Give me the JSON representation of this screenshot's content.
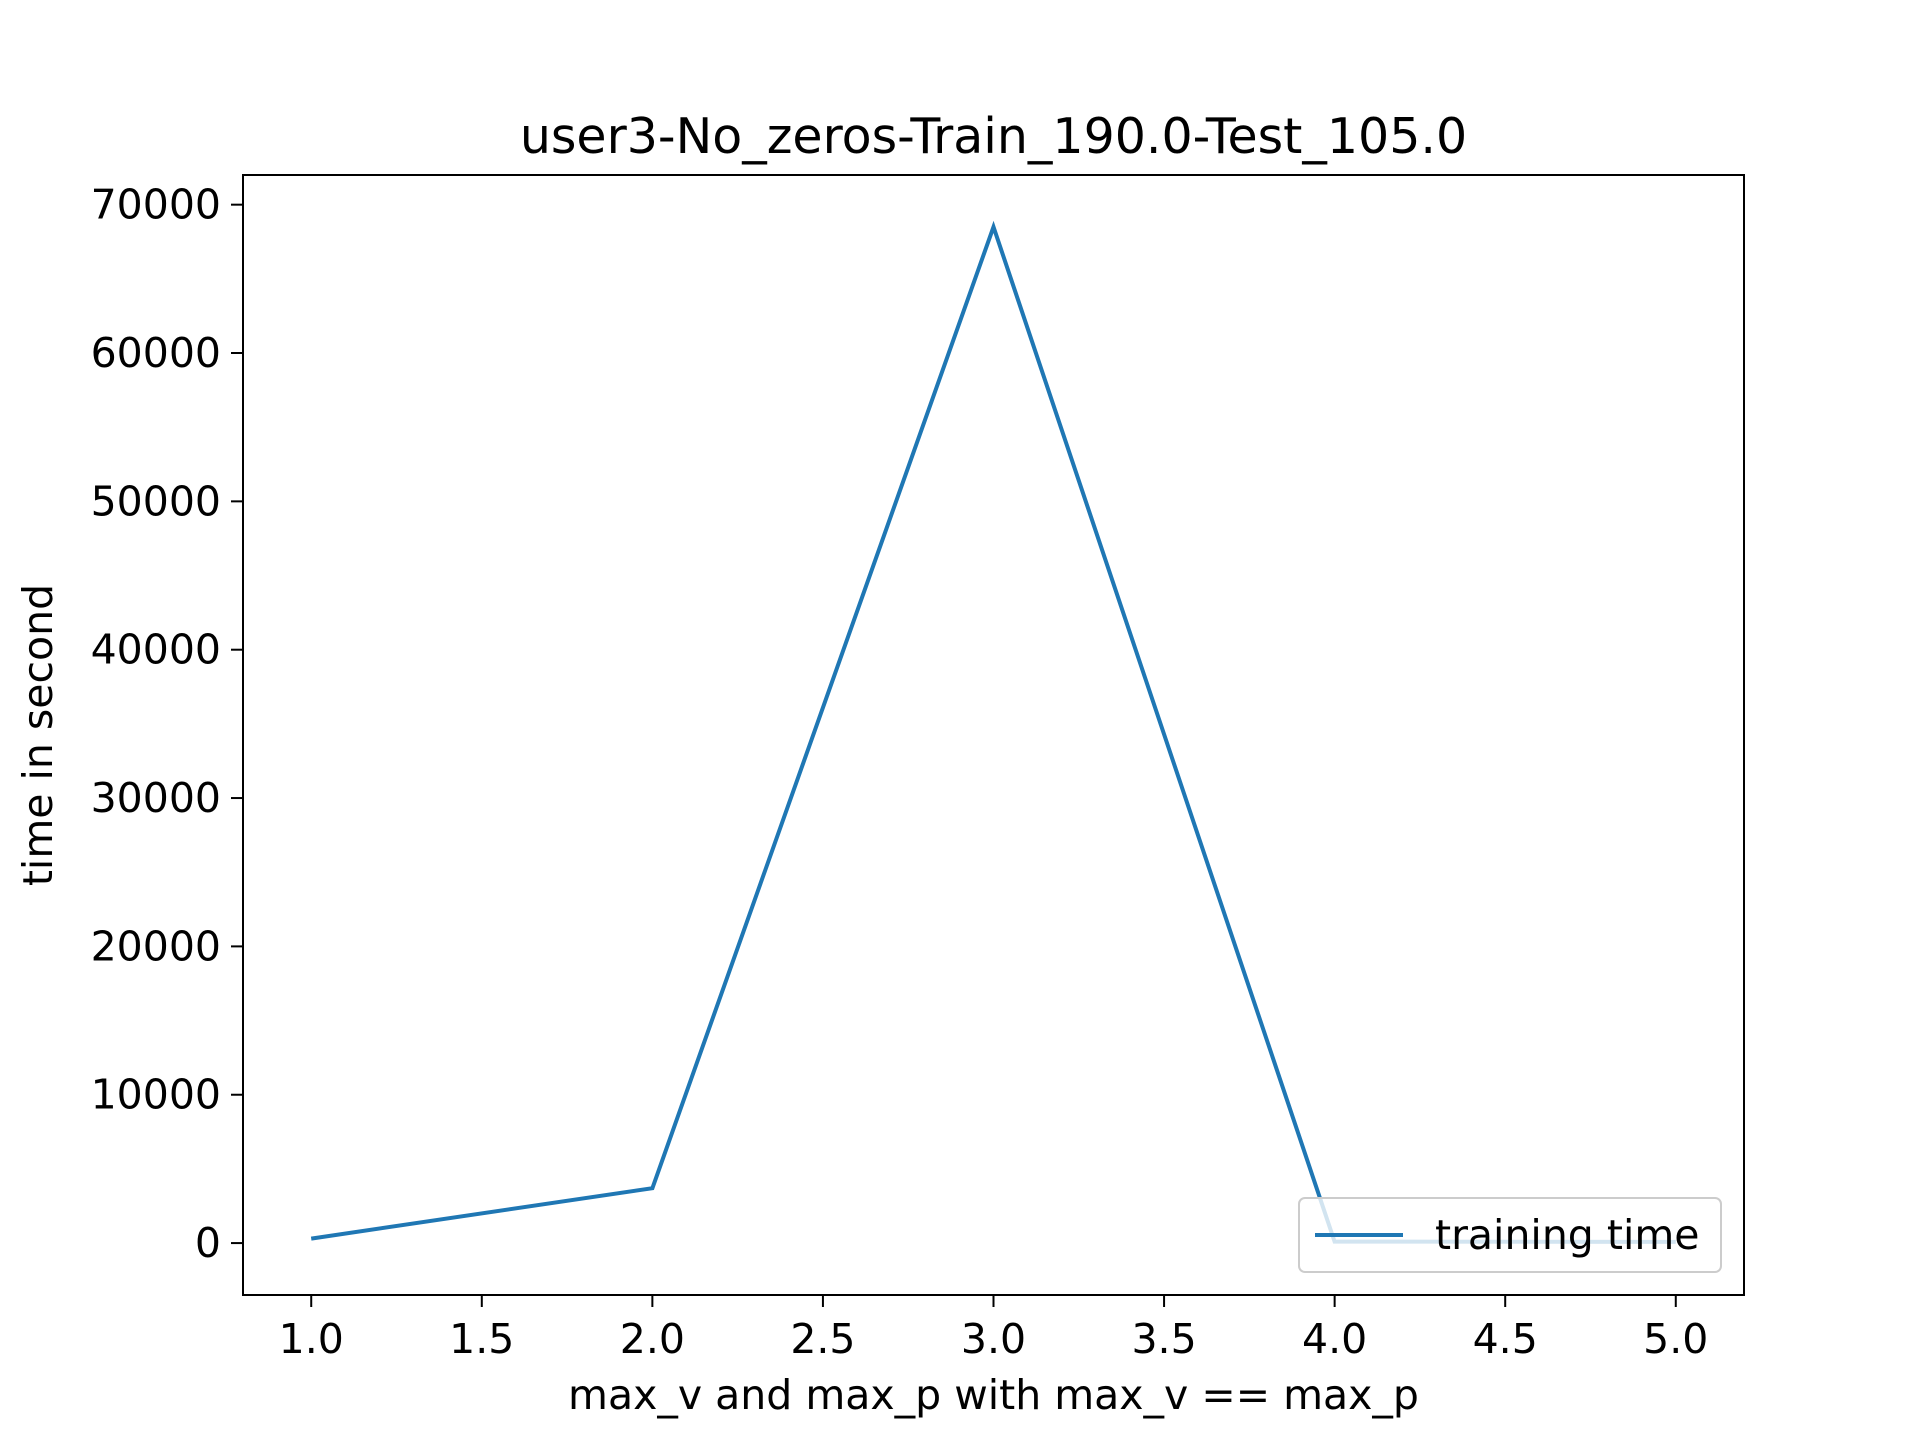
{
  "chart_data": {
    "type": "line",
    "title": "user3-No_zeros-Train_190.0-Test_105.0",
    "xlabel": "max_v and max_p with max_v == max_p",
    "ylabel": "time in second",
    "xlim": [
      0.8,
      5.2
    ],
    "ylim": [
      -3500,
      72000
    ],
    "x_ticks": [
      1.0,
      1.5,
      2.0,
      2.5,
      3.0,
      3.5,
      4.0,
      4.5,
      5.0
    ],
    "x_tick_labels": [
      "1.0",
      "1.5",
      "2.0",
      "2.5",
      "3.0",
      "3.5",
      "4.0",
      "4.5",
      "5.0"
    ],
    "y_ticks": [
      0,
      10000,
      20000,
      30000,
      40000,
      50000,
      60000,
      70000
    ],
    "y_tick_labels": [
      "0",
      "10000",
      "20000",
      "30000",
      "40000",
      "50000",
      "60000",
      "70000"
    ],
    "grid": false,
    "legend_position": "lower-right",
    "series": [
      {
        "name": "training time",
        "color": "#1f77b4",
        "x": [
          1.0,
          2.0,
          3.0,
          4.0,
          5.0
        ],
        "y": [
          300,
          3700,
          68500,
          100,
          80
        ]
      }
    ]
  }
}
